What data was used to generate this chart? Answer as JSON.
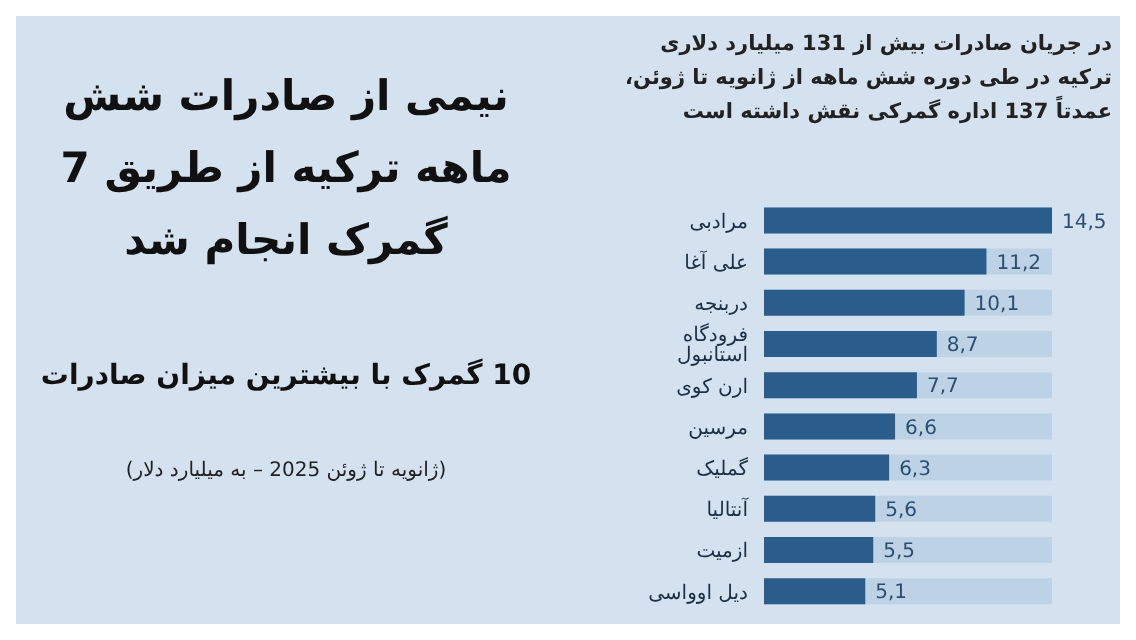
{
  "chart_data": {
    "type": "bar",
    "orientation": "horizontal",
    "title": "نیمی از صادرات شش ماهه ترکیه از طریق 7 گمرک انجام شد",
    "subtitle": "10 گمرک با بیشترین میزان صادرات",
    "annotations": [
      "(ژانویه تا ژوئن 2025 – به میلیارد دلار)",
      "در جریان صادرات بیش از 131 میلیارد دلاری ترکیه در طی دوره شش ماهه از ژانویه تا ژوئن، عمدتاً 137 اداره گمرکی نقش داشته است"
    ],
    "categories": [
      "مرادبی",
      "علی آغا",
      "دربنجه",
      "فرودگاه استانبول",
      "ارن کوی",
      "مرسین",
      "گملیک",
      "آنتالیا",
      "ازمیت",
      "دیل اوواسی"
    ],
    "values": [
      14.5,
      11.2,
      10.1,
      8.7,
      7.7,
      6.6,
      6.3,
      5.6,
      5.5,
      5.1
    ],
    "value_labels": [
      "14,5",
      "11,2",
      "10,1",
      "8,7",
      "7,7",
      "6,6",
      "6,3",
      "5,6",
      "5,5",
      "5,1"
    ],
    "color": "#2b5d8c"
  }
}
